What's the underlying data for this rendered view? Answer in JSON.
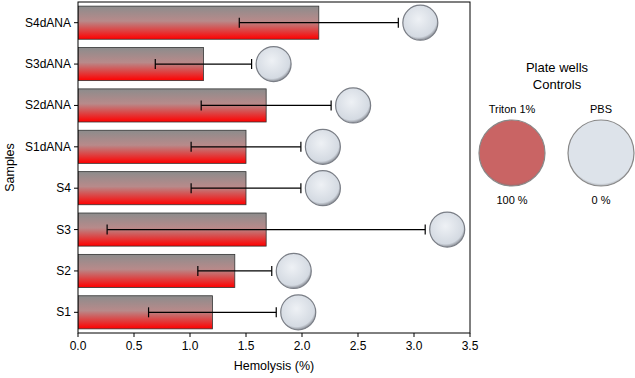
{
  "chart_data": {
    "type": "bar",
    "orientation": "horizontal",
    "x_label": "Hemolysis (%)",
    "y_label": "Samples",
    "categories": [
      "S1",
      "S2",
      "S3",
      "S4",
      "S1dANA",
      "S2dANA",
      "S3dANA",
      "S4dANA"
    ],
    "values": [
      1.2,
      1.4,
      1.68,
      1.5,
      1.5,
      1.68,
      1.12,
      2.15
    ],
    "errors": [
      0.57,
      0.33,
      1.42,
      0.49,
      0.49,
      0.58,
      0.43,
      0.71
    ],
    "color": "#ff0000",
    "xlim": [
      0,
      3.5
    ],
    "xticks": [
      {
        "value": 0,
        "label": "0.0"
      },
      0.5,
      {
        "value": 1,
        "label": "1.0"
      },
      1.5,
      {
        "value": 2,
        "label": "2.0"
      },
      2.5,
      {
        "value": 3,
        "label": "3.0"
      },
      3.5
    ],
    "grid": false,
    "controls_title": [
      "Plate wells",
      "Controls"
    ],
    "controls": [
      {
        "name": "Triton 1%",
        "label": "100 %",
        "color": "#c96464"
      },
      {
        "name": "PBS",
        "label": "0 %",
        "color": "#dde3ea"
      }
    ]
  }
}
